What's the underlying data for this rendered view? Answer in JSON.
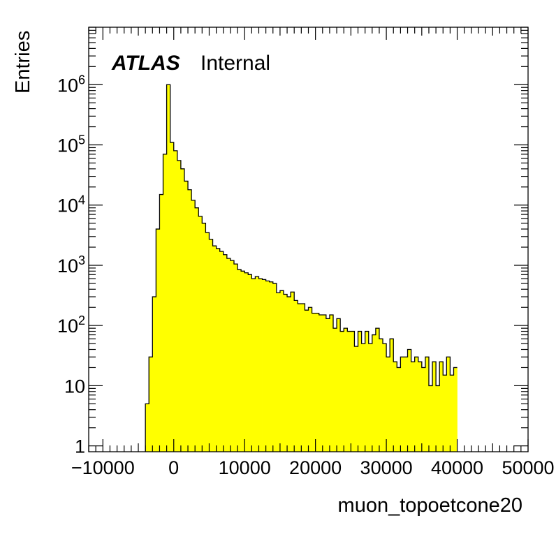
{
  "chart_data": {
    "type": "area",
    "title": "",
    "xlabel": "muon_topoetcone20",
    "ylabel": "Entries",
    "xlim": [
      -12000,
      50000
    ],
    "ylim": [
      0.8,
      9000000
    ],
    "yscale": "log",
    "grid": false,
    "fill_color": "#ffff00",
    "line_color": "#000000",
    "label_main": "ATLAS",
    "label_sub": "Internal",
    "x_ticks": [
      {
        "value": -10000,
        "label": "−10000"
      },
      {
        "value": 0,
        "label": "0"
      },
      {
        "value": 10000,
        "label": "10000"
      },
      {
        "value": 20000,
        "label": "20000"
      },
      {
        "value": 30000,
        "label": "30000"
      },
      {
        "value": 40000,
        "label": "40000"
      },
      {
        "value": 50000,
        "label": "50000"
      }
    ],
    "y_ticks": [
      {
        "value": 1,
        "base": "1",
        "exp": ""
      },
      {
        "value": 10,
        "base": "10",
        "exp": ""
      },
      {
        "value": 100,
        "base": "10",
        "exp": "2"
      },
      {
        "value": 1000,
        "base": "10",
        "exp": "3"
      },
      {
        "value": 10000,
        "base": "10",
        "exp": "4"
      },
      {
        "value": 100000,
        "base": "10",
        "exp": "5"
      },
      {
        "value": 1000000,
        "base": "10",
        "exp": "6"
      }
    ],
    "bin_width": 500,
    "bin_start": -4000,
    "values": [
      5,
      30,
      300,
      4000,
      15000,
      70000,
      1000000,
      110000,
      80000,
      55000,
      40000,
      25000,
      18000,
      12000,
      9000,
      6500,
      5000,
      3500,
      2700,
      2100,
      1900,
      1700,
      1500,
      1300,
      1200,
      1050,
      850,
      800,
      750,
      700,
      600,
      650,
      600,
      580,
      550,
      530,
      500,
      350,
      380,
      330,
      300,
      360,
      260,
      230,
      230,
      180,
      200,
      160,
      160,
      150,
      150,
      130,
      150,
      90,
      130,
      80,
      90,
      80,
      80,
      45,
      80,
      50,
      80,
      50,
      70,
      90,
      60,
      50,
      30,
      60,
      25,
      20,
      30,
      30,
      40,
      25,
      30,
      25,
      20,
      30,
      10,
      25,
      10,
      25,
      15,
      30,
      15,
      20
    ]
  }
}
